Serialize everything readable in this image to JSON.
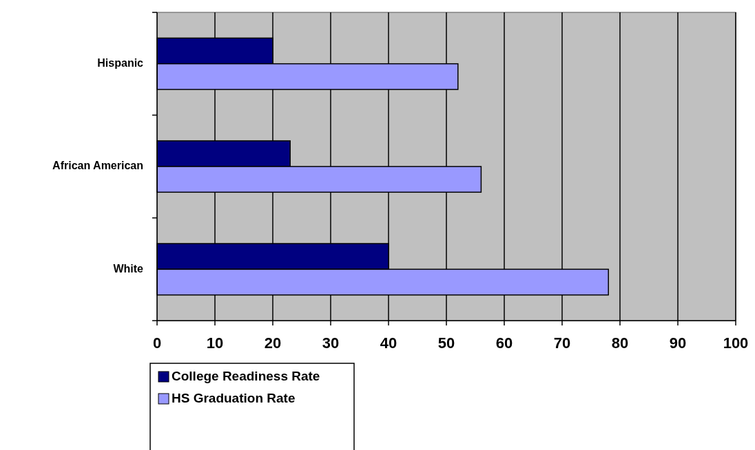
{
  "chart_data": {
    "type": "bar",
    "orientation": "horizontal",
    "categories": [
      "Hispanic",
      "African American",
      "White"
    ],
    "series": [
      {
        "name": "College Readiness Rate",
        "color": "#000080",
        "values": [
          20,
          23,
          40
        ]
      },
      {
        "name": "HS Graduation Rate",
        "color": "#9999ff",
        "values": [
          52,
          56,
          78
        ]
      }
    ],
    "xlim": [
      0,
      100
    ],
    "xticks": [
      0,
      10,
      20,
      30,
      40,
      50,
      60,
      70,
      80,
      90,
      100
    ],
    "grid": "x",
    "legend": "bottom"
  }
}
